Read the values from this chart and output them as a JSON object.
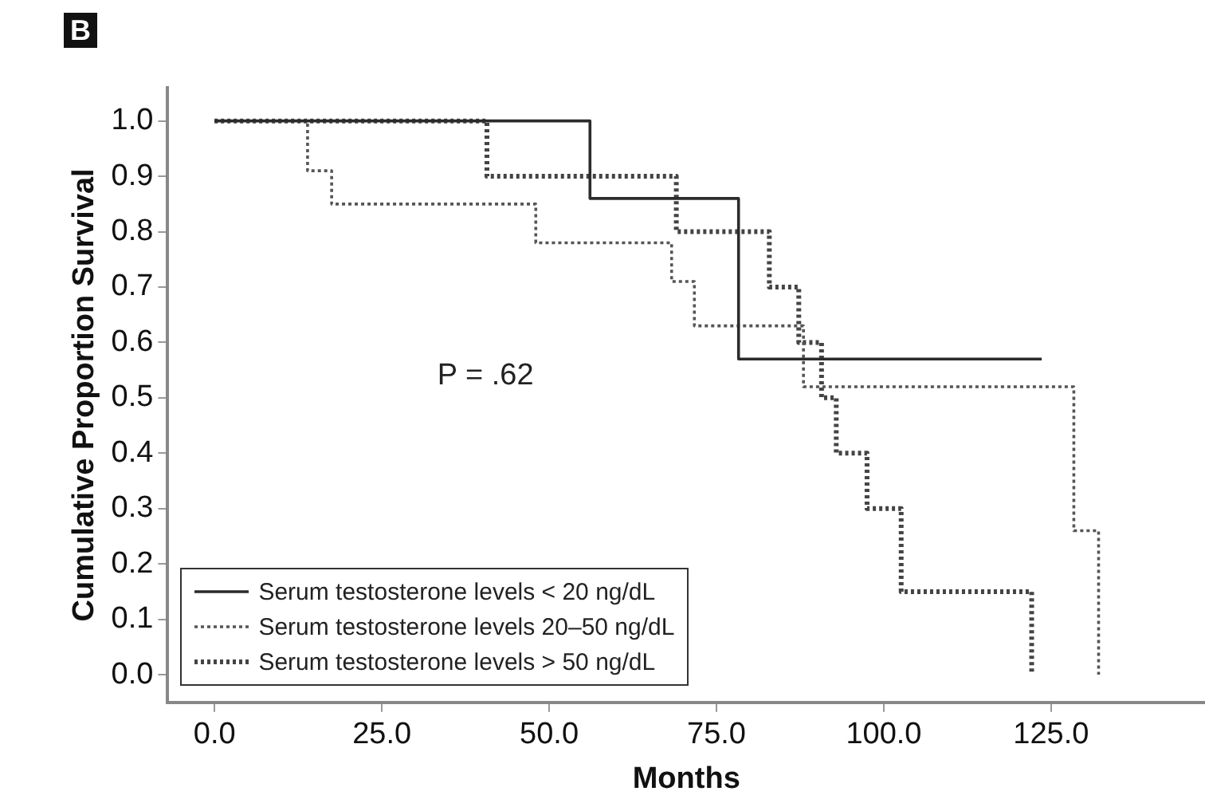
{
  "chart_data": {
    "type": "step",
    "xlabel": "Months",
    "ylabel": "Cumulative Proportion Survival",
    "annotations": [
      "B",
      "P = .62"
    ],
    "xlim": [
      -7,
      148
    ],
    "ylim": [
      -0.05,
      1.06
    ],
    "xticks": [
      {
        "value": 0,
        "label": "0.0"
      },
      {
        "value": 25,
        "label": "25.0"
      },
      {
        "value": 50,
        "label": "50.0"
      },
      {
        "value": 75,
        "label": "75.0"
      },
      {
        "value": 100,
        "label": "100.0"
      },
      {
        "value": 125,
        "label": "125.0"
      }
    ],
    "yticks": [
      {
        "value": 0,
        "label": "0.0"
      },
      {
        "value": 0.1,
        "label": "0.1"
      },
      {
        "value": 0.2,
        "label": "0.2"
      },
      {
        "value": 0.3,
        "label": "0.3"
      },
      {
        "value": 0.4,
        "label": "0.4"
      },
      {
        "value": 0.5,
        "label": "0.5"
      },
      {
        "value": 0.6,
        "label": "0.6"
      },
      {
        "value": 0.7,
        "label": "0.7"
      },
      {
        "value": 0.8,
        "label": "0.8"
      },
      {
        "value": 0.9,
        "label": "0.9"
      },
      {
        "value": 1,
        "label": "1.0"
      }
    ],
    "legend": "bottom left",
    "grid": false,
    "marker": "none",
    "series": [
      {
        "name": "Serum testosterone levels < 20 ng/dL",
        "color": "#2b2b2b",
        "line_style": "solid",
        "x": [
          0,
          56.1,
          78.3,
          123.6
        ],
        "values": [
          1,
          0.86,
          0.57,
          0.57
        ]
      },
      {
        "name": "Serum testosterone levels 20–50 ng/dL",
        "color": "#555555",
        "line_style": "dotted",
        "x": [
          0,
          13.9,
          17.5,
          48,
          68.3,
          71.7,
          88,
          128.4,
          132.1
        ],
        "values": [
          1,
          0.91,
          0.85,
          0.78,
          0.71,
          0.63,
          0.52,
          0.26,
          0
        ]
      },
      {
        "name": "Serum testosterone levels > 50 ng/dL",
        "color": "#444444",
        "line_style": "dotted",
        "x": [
          0,
          40.7,
          69,
          82.9,
          87.3,
          90.7,
          92.9,
          97.5,
          102.6,
          122.1
        ],
        "values": [
          1,
          0.9,
          0.8,
          0.7,
          0.6,
          0.5,
          0.4,
          0.3,
          0.15,
          0
        ]
      }
    ]
  }
}
